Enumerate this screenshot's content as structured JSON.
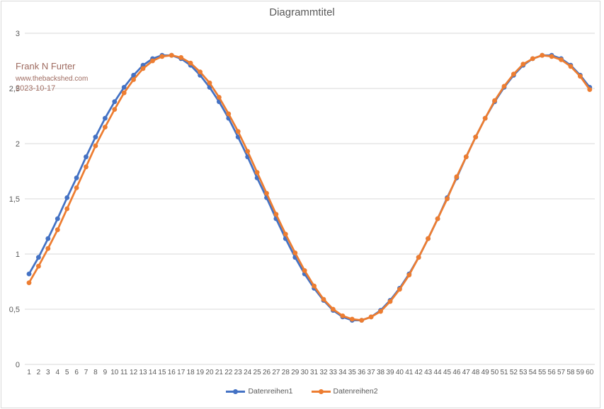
{
  "chart": {
    "annotation": {
      "author": "Frank N Furter",
      "website": "www.thebackshed.com",
      "date": "2023-10-17"
    }
  },
  "colors": {
    "series1": "#4472C4",
    "series2": "#ED7D31",
    "gridline": "#D9D9D9",
    "chart_border": "#D9D9D9",
    "axis_text": "#595959",
    "title_text": "#595959",
    "annotation_text": "#9E6A5F",
    "background": "#FFFFFF"
  },
  "chart_data": {
    "type": "line",
    "title": "Diagrammtitel",
    "xlabel": "",
    "ylabel": "",
    "ylim": [
      0,
      3
    ],
    "yticks": [
      0,
      0.5,
      1,
      1.5,
      2,
      2.5,
      3
    ],
    "ytick_labels": [
      "0",
      "0,5",
      "1",
      "1,5",
      "2",
      "2,5",
      "3"
    ],
    "grid": "horizontal",
    "legend_position": "bottom",
    "marker": "circle",
    "x": [
      1,
      2,
      3,
      4,
      5,
      6,
      7,
      8,
      9,
      10,
      11,
      12,
      13,
      14,
      15,
      16,
      17,
      18,
      19,
      20,
      21,
      22,
      23,
      24,
      25,
      26,
      27,
      28,
      29,
      30,
      31,
      32,
      33,
      34,
      35,
      36,
      37,
      38,
      39,
      40,
      41,
      42,
      43,
      44,
      45,
      46,
      47,
      48,
      49,
      50,
      51,
      52,
      53,
      54,
      55,
      56,
      57,
      58,
      59,
      60
    ],
    "series": [
      {
        "name": "Datenreihen1",
        "color": "#4472C4",
        "values": [
          0.82,
          0.97,
          1.14,
          1.32,
          1.51,
          1.69,
          1.88,
          2.06,
          2.23,
          2.38,
          2.51,
          2.62,
          2.71,
          2.77,
          2.8,
          2.8,
          2.77,
          2.71,
          2.62,
          2.51,
          2.38,
          2.23,
          2.06,
          1.88,
          1.69,
          1.51,
          1.32,
          1.14,
          0.97,
          0.82,
          0.69,
          0.58,
          0.49,
          0.43,
          0.4,
          0.4,
          0.43,
          0.49,
          0.58,
          0.69,
          0.82,
          0.97,
          1.14,
          1.32,
          1.51,
          1.69,
          1.88,
          2.06,
          2.23,
          2.38,
          2.51,
          2.62,
          2.71,
          2.77,
          2.8,
          2.8,
          2.77,
          2.71,
          2.62,
          2.51
        ]
      },
      {
        "name": "Datenreihen2",
        "color": "#ED7D31",
        "values": [
          0.74,
          0.89,
          1.05,
          1.22,
          1.41,
          1.6,
          1.79,
          1.98,
          2.15,
          2.31,
          2.46,
          2.58,
          2.68,
          2.75,
          2.79,
          2.8,
          2.78,
          2.73,
          2.65,
          2.55,
          2.42,
          2.27,
          2.11,
          1.93,
          1.74,
          1.55,
          1.36,
          1.18,
          1.01,
          0.85,
          0.71,
          0.59,
          0.5,
          0.44,
          0.41,
          0.4,
          0.43,
          0.48,
          0.57,
          0.68,
          0.81,
          0.97,
          1.14,
          1.32,
          1.5,
          1.7,
          1.88,
          2.06,
          2.23,
          2.39,
          2.52,
          2.63,
          2.72,
          2.77,
          2.8,
          2.79,
          2.76,
          2.7,
          2.61,
          2.49
        ]
      }
    ]
  }
}
